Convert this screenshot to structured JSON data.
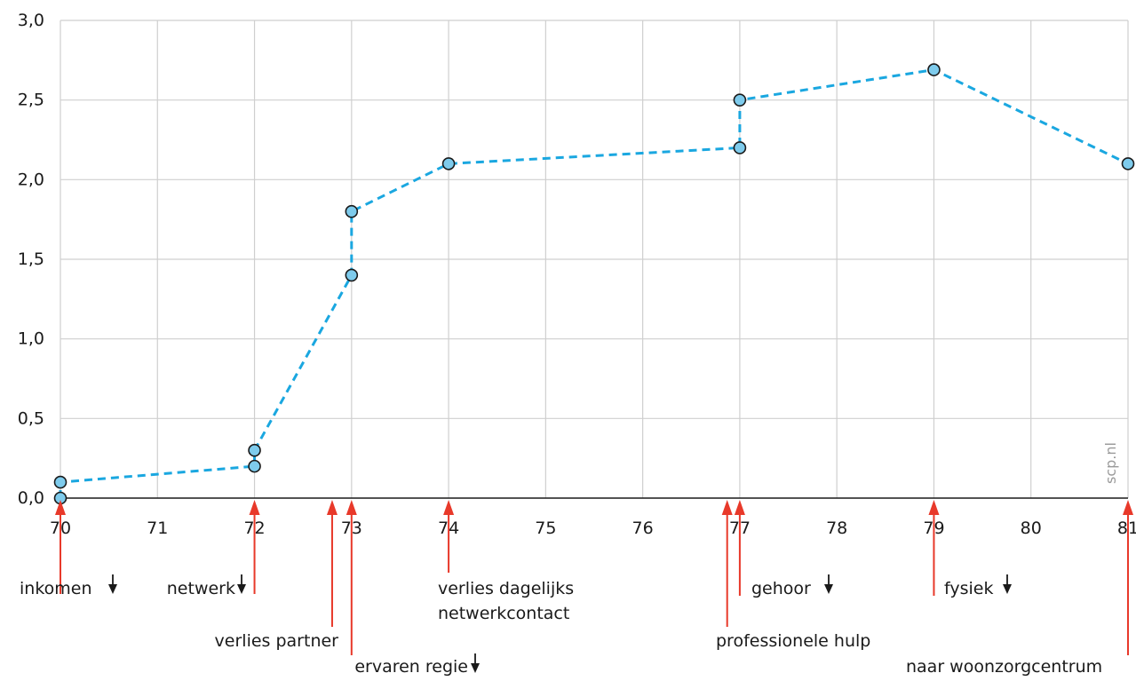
{
  "chart_data": {
    "type": "line",
    "title": "",
    "xlabel": "",
    "ylabel": "",
    "xlim": [
      70,
      81
    ],
    "ylim": [
      0,
      3
    ],
    "grid": true,
    "x_ticks": [
      70,
      71,
      72,
      73,
      74,
      75,
      76,
      77,
      78,
      79,
      80,
      81
    ],
    "x_tick_labels": [
      "70",
      "71",
      "72",
      "73",
      "74",
      "75",
      "76",
      "77",
      "78",
      "79",
      "80",
      "81"
    ],
    "y_ticks": [
      0,
      0.5,
      1,
      1.5,
      2,
      2.5,
      3
    ],
    "y_tick_labels": [
      "0,0",
      "0,5",
      "1,0",
      "1,5",
      "2,0",
      "2,5",
      "3,0"
    ],
    "series": [
      {
        "color": "#1aa7e0",
        "marker_fill": "#7ecbec",
        "style": "dashed",
        "points": [
          {
            "x": 70,
            "y": 0.0
          },
          {
            "x": 70,
            "y": 0.1
          },
          {
            "x": 72,
            "y": 0.2
          },
          {
            "x": 72,
            "y": 0.3
          },
          {
            "x": 73,
            "y": 1.4
          },
          {
            "x": 73,
            "y": 1.8
          },
          {
            "x": 74,
            "y": 2.1
          },
          {
            "x": 77,
            "y": 2.2
          },
          {
            "x": 77,
            "y": 2.5
          },
          {
            "x": 79,
            "y": 2.69
          },
          {
            "x": 81,
            "y": 2.1
          }
        ]
      }
    ],
    "events": [
      {
        "x": 70,
        "lines": [
          "inkomen"
        ],
        "down_arrow": true
      },
      {
        "x": 72,
        "lines": [
          "netwerk"
        ],
        "down_arrow": true
      },
      {
        "x": 72.8,
        "lines": [
          "verlies partner"
        ],
        "down_arrow": false
      },
      {
        "x": 73,
        "lines": [
          "ervaren regie"
        ],
        "down_arrow": true
      },
      {
        "x": 74,
        "lines": [
          "verlies dagelijks",
          "netwerkcontact"
        ],
        "down_arrow": false
      },
      {
        "x": 76.87,
        "lines": [
          "professionele hulp"
        ],
        "down_arrow": false
      },
      {
        "x": 77,
        "lines": [
          "gehoor"
        ],
        "down_arrow": true
      },
      {
        "x": 79,
        "lines": [
          "fysiek"
        ],
        "down_arrow": true
      },
      {
        "x": 81,
        "lines": [
          "naar woonzorgcentrum"
        ],
        "down_arrow": false
      }
    ],
    "event_arrow_color": "#e8392a",
    "watermark": "scp.nl"
  }
}
